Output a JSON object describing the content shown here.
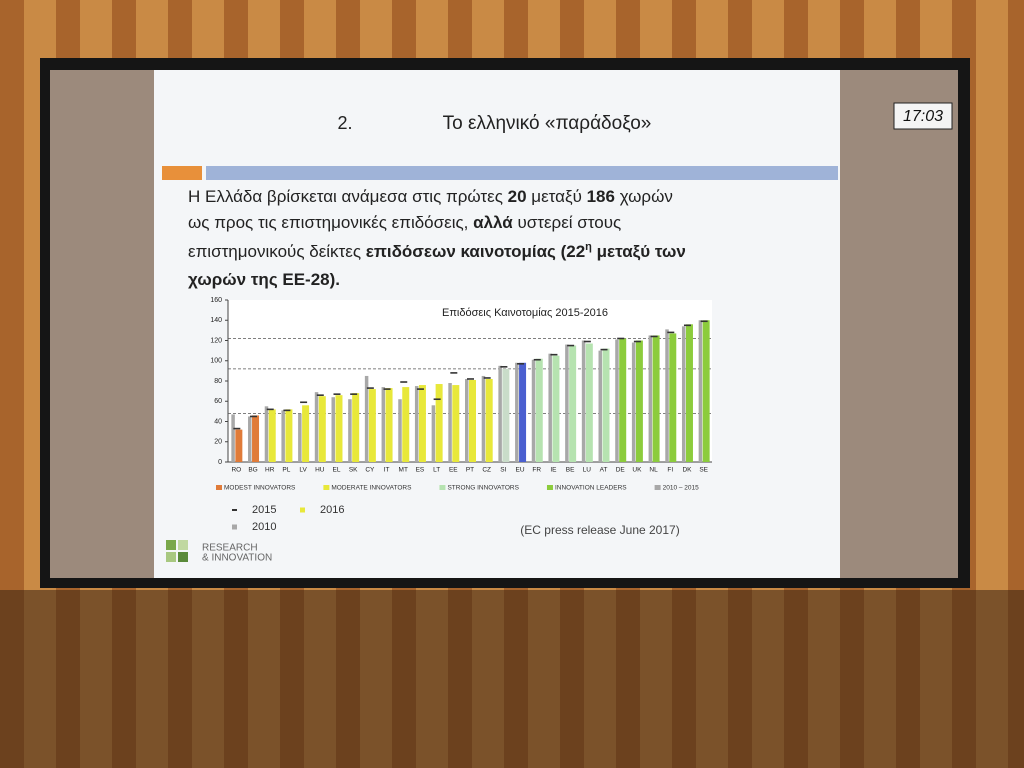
{
  "slide": {
    "number": "2.",
    "title": "Το ελληνικό «παράδοξο»",
    "clock": "17:03",
    "paragraph": [
      [
        {
          "t": "Η  Ελλάδα βρίσκεται ανάμεσα στις πρώτες ",
          "bold": false
        },
        {
          "t": "20",
          "bold": true
        },
        {
          "t": " μεταξύ ",
          "bold": false
        },
        {
          "t": "186",
          "bold": true
        },
        {
          "t": " χωρών",
          "bold": false
        }
      ],
      [
        {
          "t": "ως προς τις επιστημονικές επιδόσεις, ",
          "bold": false
        },
        {
          "t": "αλλά",
          "bold": true
        },
        {
          "t": " υστερεί στους",
          "bold": false
        }
      ],
      [
        {
          "t": "επιστημονικούς δείκτες ",
          "bold": false
        },
        {
          "t": "επιδόσεων καινοτομίας (22",
          "bold": true
        },
        {
          "t": "η",
          "bold": true,
          "sup": true
        },
        {
          "t": " μεταξύ των",
          "bold": true
        }
      ],
      [
        {
          "t": "χωρών της ΕΕ-28).",
          "bold": true
        }
      ]
    ],
    "source": "(EC press release June 2017)",
    "logo": [
      "RESEARCH",
      "& INNOVATION"
    ]
  },
  "chart_data": {
    "type": "bar",
    "title": "Επιδόσεις Καινοτομίας 2015-2016",
    "categories": [
      "RO",
      "BG",
      "HR",
      "PL",
      "LV",
      "HU",
      "EL",
      "SK",
      "CY",
      "IT",
      "MT",
      "ES",
      "LT",
      "EE",
      "PT",
      "CZ",
      "SI",
      "EU",
      "FR",
      "IE",
      "BE",
      "LU",
      "AT",
      "DE",
      "UK",
      "NL",
      "FI",
      "DK",
      "SE"
    ],
    "series": [
      {
        "name": "2010",
        "color": "#a8a8a8",
        "values": [
          47,
          45,
          55,
          51,
          48,
          69,
          64,
          62,
          85,
          74,
          62,
          75,
          56,
          78,
          82,
          85,
          95,
          98,
          101,
          107,
          116,
          120,
          110,
          121,
          118,
          125,
          131,
          134,
          140
        ]
      },
      {
        "name": "2016",
        "color": "#e8e83a",
        "colors": [
          "#e07b39",
          "#e07b39",
          "#e8e83a",
          "#e8e83a",
          "#e8e83a",
          "#e8e83a",
          "#e8e83a",
          "#e8e83a",
          "#e8e83a",
          "#e8e83a",
          "#e8e83a",
          "#e8e83a",
          "#e8e83a",
          "#e8e83a",
          "#e8e83a",
          "#e8e83a",
          "#c9dcc9",
          "#4a5fd0",
          "#b6e3b0",
          "#b6e3b0",
          "#b6e3b0",
          "#b6e3b0",
          "#b6e3b0",
          "#8ccc3c",
          "#8ccc3c",
          "#8ccc3c",
          "#8ccc3c",
          "#8ccc3c",
          "#8ccc3c"
        ],
        "values": [
          32,
          46,
          52,
          52,
          56,
          65,
          66,
          68,
          72,
          73,
          74,
          76,
          77,
          76,
          81,
          82,
          92,
          98,
          102,
          105,
          115,
          117,
          112,
          122,
          120,
          125,
          127,
          136,
          140
        ]
      },
      {
        "name": "2015",
        "color": "#333333",
        "marker": "dash",
        "values": [
          33,
          45,
          52,
          51,
          59,
          66,
          67,
          67,
          73,
          72,
          79,
          72,
          62,
          88,
          82,
          83,
          94,
          97,
          101,
          106,
          115,
          119,
          111,
          122,
          119,
          124,
          128,
          135,
          139
        ]
      }
    ],
    "groups": [
      {
        "name": "MODEST INNOVATORS",
        "color": "#e07b39"
      },
      {
        "name": "MODERATE INNOVATORS",
        "color": "#e8e83a"
      },
      {
        "name": "STRONG INNOVATORS",
        "color": "#b6e3b0"
      },
      {
        "name": "INNOVATION LEADERS",
        "color": "#8ccc3c"
      },
      {
        "name": "2010 – 2015",
        "color": "#a8a8a8"
      }
    ],
    "reference_lines": [
      48,
      92,
      122
    ],
    "ylim": [
      0,
      160
    ],
    "yticks": [
      0,
      20,
      40,
      60,
      80,
      100,
      120,
      140,
      160
    ],
    "grid": false
  }
}
